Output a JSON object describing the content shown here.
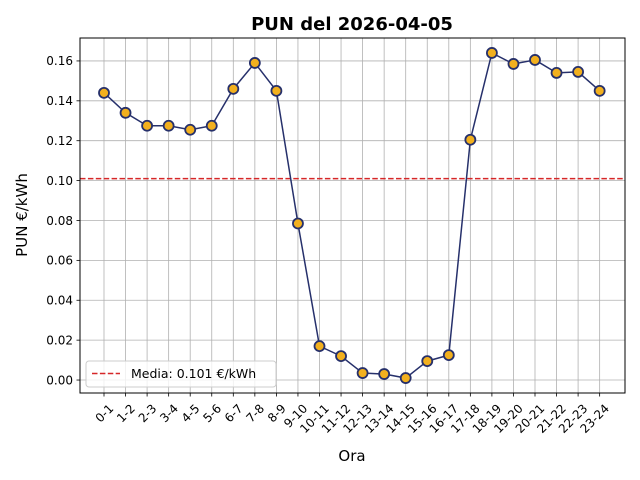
{
  "chart_data": {
    "type": "line",
    "title": "PUN del 2026-04-05",
    "xlabel": "Ora",
    "ylabel": "PUN €/kWh",
    "categories": [
      "0-1",
      "1-2",
      "2-3",
      "3-4",
      "4-5",
      "5-6",
      "6-7",
      "7-8",
      "8-9",
      "9-10",
      "10-11",
      "11-12",
      "12-13",
      "13-14",
      "14-15",
      "15-16",
      "16-17",
      "17-18",
      "18-19",
      "19-20",
      "20-21",
      "21-22",
      "22-23",
      "23-24"
    ],
    "series": [
      {
        "values": [
          0.144,
          0.134,
          0.1275,
          0.1275,
          0.1255,
          0.1275,
          0.146,
          0.159,
          0.145,
          0.0785,
          0.017,
          0.012,
          0.0035,
          0.003,
          0.001,
          0.0095,
          0.0125,
          0.1205,
          0.164,
          0.1585,
          0.1605,
          0.154,
          0.1545,
          0.145
        ],
        "line_color": "#26306b",
        "marker_fill": "#f2b01e",
        "marker_edge": "#26306b"
      }
    ],
    "mean_line": {
      "value": 0.101,
      "label": "Media: 0.101 €/kWh",
      "color": "#d62728",
      "style": "dashed"
    },
    "ylim": [
      -0.0065,
      0.1715
    ],
    "yticks": [
      "0.00",
      "0.02",
      "0.04",
      "0.06",
      "0.08",
      "0.10",
      "0.12",
      "0.14",
      "0.16"
    ],
    "ytick_values": [
      0.0,
      0.02,
      0.04,
      0.06,
      0.08,
      0.1,
      0.12,
      0.14,
      0.16
    ],
    "grid": true,
    "legend_position": "lower-left"
  }
}
